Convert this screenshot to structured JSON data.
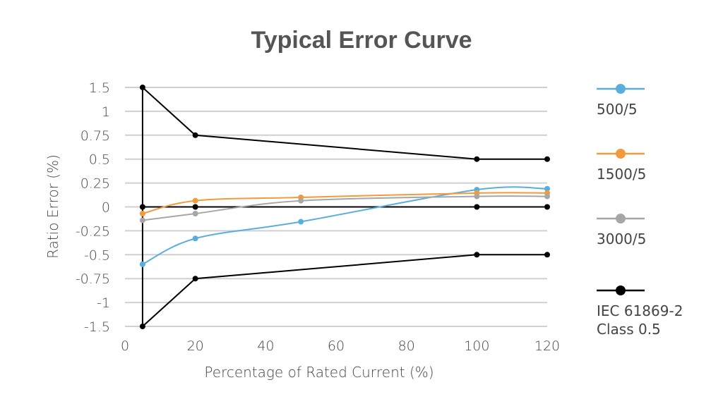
{
  "chart_data": {
    "type": "line",
    "title": "Typical Error Curve",
    "xlabel": "Percentage of Rated Current (%)",
    "ylabel": "Ratio Error (%)",
    "xlim": [
      0,
      120
    ],
    "x_ticks": [
      "0",
      "20",
      "40",
      "60",
      "80",
      "100",
      "120"
    ],
    "y_ticks": [
      "-1.5",
      "-1",
      "-0.75",
      "-0.5",
      "-0.25",
      "0",
      "0.25",
      "0.5",
      "0.75",
      "1",
      "1.5"
    ],
    "grid": "horizontal",
    "legend_position": "right",
    "series": [
      {
        "name": "500/5",
        "color": "#5aaedc",
        "smooth": true,
        "x": [
          5,
          20,
          50,
          100,
          120
        ],
        "y": [
          -0.6,
          -0.33,
          -0.155,
          0.18,
          0.19
        ]
      },
      {
        "name": "1500/5",
        "color": "#f39a3c",
        "smooth": true,
        "x": [
          5,
          20,
          50,
          100,
          120
        ],
        "y": [
          -0.07,
          0.065,
          0.1,
          0.145,
          0.145
        ]
      },
      {
        "name": "3000/5",
        "color": "#a6a6a6",
        "smooth": true,
        "x": [
          5,
          20,
          50,
          100,
          120
        ],
        "y": [
          -0.14,
          -0.07,
          0.065,
          0.11,
          0.11
        ]
      },
      {
        "name": "IEC 61869-2 Class 0.5",
        "color": "#000000",
        "smooth": false,
        "segments": [
          {
            "x": [
              5,
              20,
              100,
              120
            ],
            "y": [
              1.5,
              0.75,
              0.5,
              0.5
            ]
          },
          {
            "x": [
              5,
              20,
              100,
              120
            ],
            "y": [
              0,
              0,
              0,
              0
            ]
          },
          {
            "x": [
              5,
              20,
              100,
              120
            ],
            "y": [
              -1.5,
              -0.75,
              -0.5,
              -0.5
            ]
          },
          {
            "x": [
              5,
              5
            ],
            "y": [
              1.5,
              -1.5
            ]
          }
        ]
      }
    ]
  }
}
